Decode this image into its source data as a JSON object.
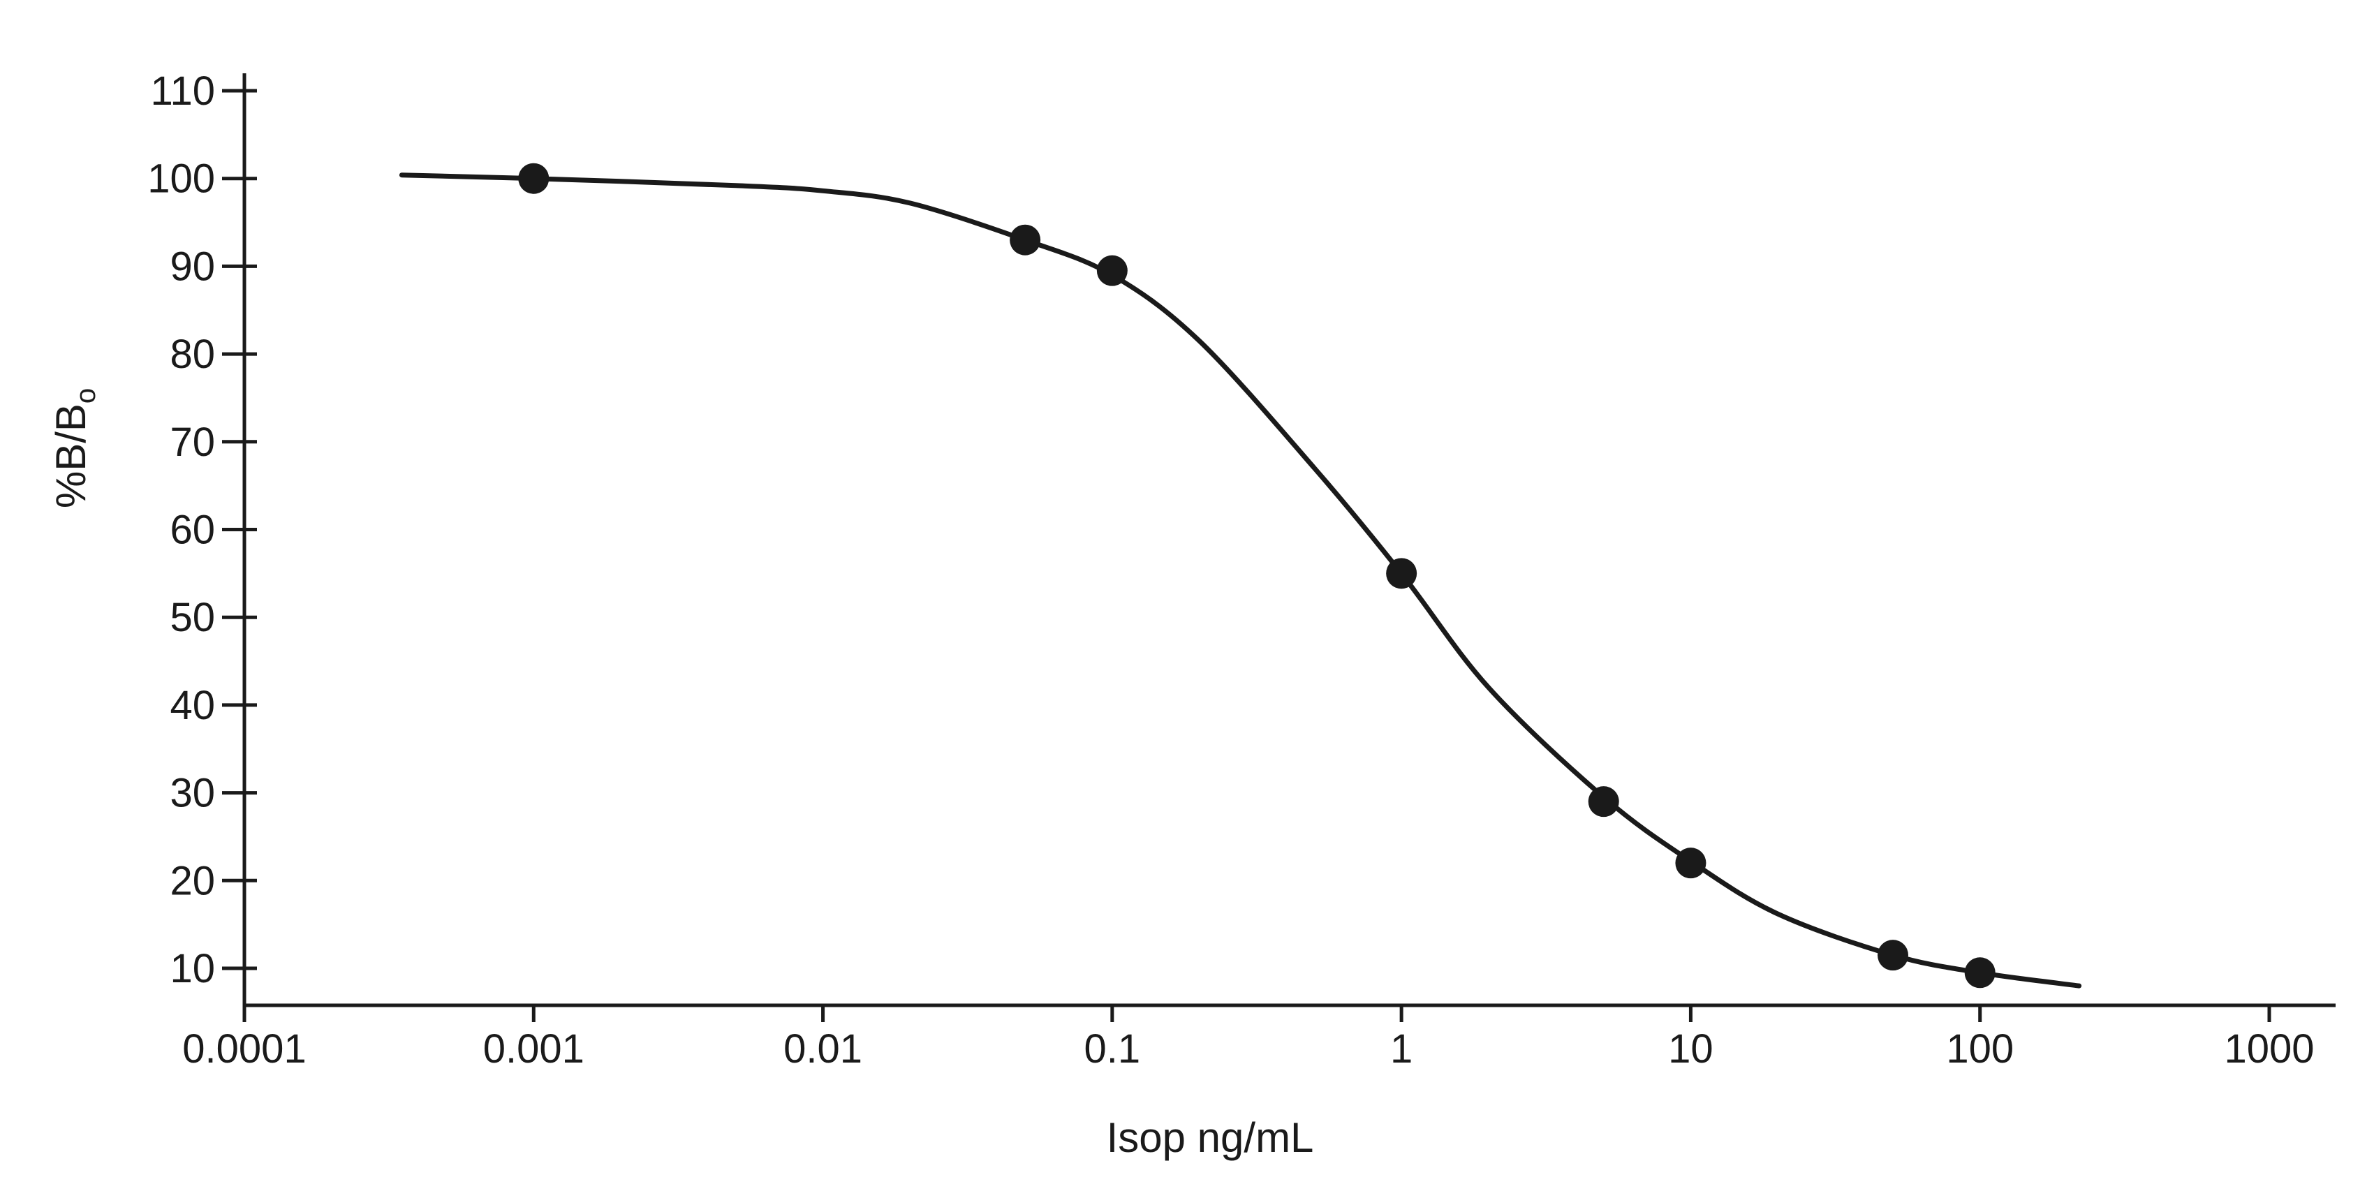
{
  "chart_data": {
    "type": "scatter",
    "title": "",
    "xlabel": "Isop ng/mL",
    "ylabel": {
      "main": "%B/B",
      "subscript": "o"
    },
    "x_scale": "log",
    "xlim": [
      0.0001,
      1000
    ],
    "ylim": [
      6,
      110
    ],
    "x_ticks": [
      {
        "value": 0.0001,
        "label": "0.0001"
      },
      {
        "value": 0.001,
        "label": "0.001"
      },
      {
        "value": 0.01,
        "label": "0.01"
      },
      {
        "value": 0.1,
        "label": "0.1"
      },
      {
        "value": 1,
        "label": "1"
      },
      {
        "value": 10,
        "label": "10"
      },
      {
        "value": 100,
        "label": "100"
      },
      {
        "value": 1000,
        "label": "1000"
      }
    ],
    "y_ticks": [
      {
        "value": 10,
        "label": "10"
      },
      {
        "value": 20,
        "label": "20"
      },
      {
        "value": 30,
        "label": "30"
      },
      {
        "value": 40,
        "label": "40"
      },
      {
        "value": 50,
        "label": "50"
      },
      {
        "value": 60,
        "label": "60"
      },
      {
        "value": 70,
        "label": "70"
      },
      {
        "value": 80,
        "label": "80"
      },
      {
        "value": 90,
        "label": "90"
      },
      {
        "value": 100,
        "label": "100"
      },
      {
        "value": 110,
        "label": "110"
      }
    ],
    "grid": false,
    "legend": "none",
    "series": [
      {
        "kind": "points",
        "x": [
          0.001,
          0.05,
          0.1,
          1,
          5,
          10,
          50,
          100
        ],
        "y": [
          100,
          93,
          89.5,
          55,
          29,
          22,
          11.5,
          9.5
        ]
      },
      {
        "kind": "fit-curve",
        "x": [
          0.00035,
          0.001,
          0.005,
          0.01,
          0.02,
          0.05,
          0.1,
          0.2,
          0.5,
          1,
          2,
          5,
          10,
          20,
          50,
          100,
          220
        ],
        "y": [
          100.4,
          100,
          99.2,
          98.6,
          97.2,
          93,
          89,
          81.5,
          67,
          55,
          42,
          29.5,
          22.2,
          16.2,
          11.5,
          9.5,
          8
        ]
      }
    ],
    "colors": {
      "ink": "#1a1a1a",
      "background": "#ffffff"
    }
  }
}
